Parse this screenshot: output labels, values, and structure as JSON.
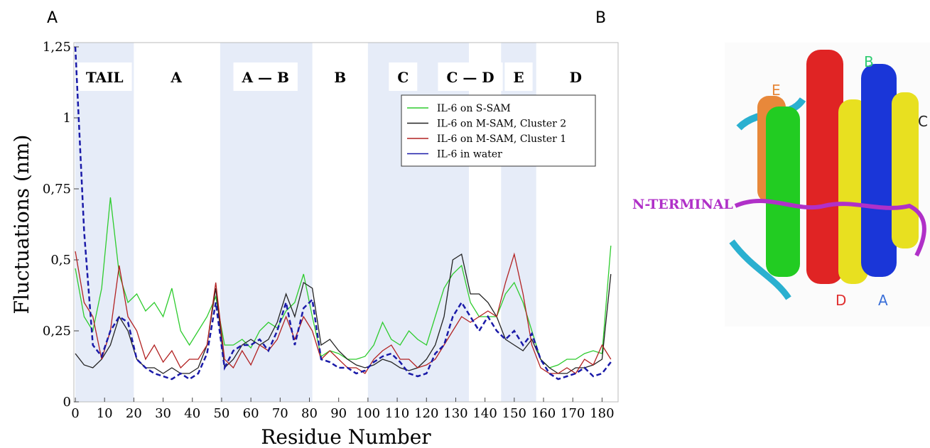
{
  "panels": {
    "left": "A",
    "right": "B"
  },
  "chart_data": {
    "type": "line",
    "xlabel": "Residue Number",
    "ylabel": "Fluctuations (nm)",
    "xlim": [
      0,
      185
    ],
    "ylim": [
      0,
      1.25
    ],
    "xticks": [
      0,
      10,
      20,
      30,
      40,
      50,
      60,
      70,
      80,
      90,
      100,
      110,
      120,
      130,
      140,
      150,
      160,
      170,
      180
    ],
    "yticks": [
      {
        "value": 0,
        "label": "0"
      },
      {
        "value": 0.25,
        "label": "0,25"
      },
      {
        "value": 0.5,
        "label": "0,5"
      },
      {
        "value": 0.75,
        "label": "0,75"
      },
      {
        "value": 1,
        "label": "1"
      },
      {
        "value": 1.25,
        "label": "1,25"
      }
    ],
    "legend": "upper right",
    "shaded_bands": [
      [
        0,
        20
      ],
      [
        49.5,
        81
      ],
      [
        100,
        134.5
      ],
      [
        145.5,
        157.5
      ]
    ],
    "band_color": "#e6ecf8",
    "segments": [
      {
        "label": "TAIL",
        "start": 0,
        "end": 20
      },
      {
        "label": "A",
        "start": 20,
        "end": 49
      },
      {
        "label": "A — B",
        "start": 49,
        "end": 81
      },
      {
        "label": "B",
        "start": 81,
        "end": 100
      },
      {
        "label": "C",
        "start": 100,
        "end": 124
      },
      {
        "label": "C — D",
        "start": 124,
        "end": 146
      },
      {
        "label": "E",
        "start": 146,
        "end": 157
      },
      {
        "label": "D",
        "start": 157,
        "end": 185
      }
    ],
    "x": [
      0,
      3,
      6,
      9,
      12,
      15,
      18,
      21,
      24,
      27,
      30,
      33,
      36,
      39,
      42,
      45,
      48,
      51,
      54,
      57,
      60,
      63,
      66,
      69,
      72,
      75,
      78,
      81,
      84,
      87,
      90,
      93,
      96,
      99,
      102,
      105,
      108,
      111,
      114,
      117,
      120,
      123,
      126,
      129,
      132,
      135,
      138,
      141,
      144,
      147,
      150,
      153,
      156,
      159,
      162,
      165,
      168,
      171,
      174,
      177,
      180,
      183
    ],
    "series": [
      {
        "name": "IL-6 on S-SAM",
        "color": "#2ecc2e",
        "dashed": false,
        "values": [
          0.47,
          0.3,
          0.25,
          0.4,
          0.72,
          0.45,
          0.35,
          0.38,
          0.32,
          0.35,
          0.3,
          0.4,
          0.25,
          0.2,
          0.25,
          0.3,
          0.37,
          0.2,
          0.2,
          0.22,
          0.19,
          0.25,
          0.28,
          0.26,
          0.32,
          0.35,
          0.45,
          0.3,
          0.16,
          0.18,
          0.17,
          0.15,
          0.15,
          0.16,
          0.2,
          0.28,
          0.22,
          0.2,
          0.25,
          0.22,
          0.2,
          0.3,
          0.4,
          0.45,
          0.48,
          0.35,
          0.3,
          0.3,
          0.3,
          0.38,
          0.42,
          0.35,
          0.25,
          0.15,
          0.12,
          0.13,
          0.15,
          0.15,
          0.17,
          0.18,
          0.17,
          0.55
        ]
      },
      {
        "name": "IL-6 on M-SAM, Cluster 2",
        "color": "#222222",
        "dashed": false,
        "values": [
          0.17,
          0.13,
          0.12,
          0.15,
          0.2,
          0.3,
          0.25,
          0.15,
          0.12,
          0.12,
          0.1,
          0.12,
          0.1,
          0.1,
          0.12,
          0.2,
          0.4,
          0.12,
          0.15,
          0.2,
          0.22,
          0.2,
          0.22,
          0.28,
          0.38,
          0.3,
          0.42,
          0.4,
          0.2,
          0.22,
          0.18,
          0.15,
          0.13,
          0.12,
          0.13,
          0.15,
          0.14,
          0.12,
          0.11,
          0.12,
          0.15,
          0.2,
          0.3,
          0.5,
          0.52,
          0.38,
          0.38,
          0.35,
          0.3,
          0.22,
          0.2,
          0.18,
          0.22,
          0.15,
          0.12,
          0.1,
          0.1,
          0.12,
          0.12,
          0.13,
          0.15,
          0.45
        ]
      },
      {
        "name": "IL-6 on M-SAM, Cluster 1",
        "color": "#b22222",
        "dashed": false,
        "values": [
          0.53,
          0.35,
          0.3,
          0.15,
          0.25,
          0.48,
          0.3,
          0.25,
          0.15,
          0.2,
          0.14,
          0.18,
          0.12,
          0.15,
          0.15,
          0.2,
          0.42,
          0.15,
          0.12,
          0.18,
          0.13,
          0.2,
          0.18,
          0.22,
          0.3,
          0.22,
          0.3,
          0.25,
          0.15,
          0.18,
          0.15,
          0.12,
          0.12,
          0.1,
          0.15,
          0.18,
          0.2,
          0.15,
          0.15,
          0.12,
          0.13,
          0.15,
          0.2,
          0.25,
          0.3,
          0.28,
          0.3,
          0.32,
          0.3,
          0.42,
          0.52,
          0.38,
          0.2,
          0.12,
          0.1,
          0.1,
          0.12,
          0.1,
          0.15,
          0.13,
          0.2,
          0.15
        ]
      },
      {
        "name": "IL-6 in water",
        "color": "#1a1aa8",
        "dashed": true,
        "values": [
          1.25,
          0.6,
          0.2,
          0.16,
          0.25,
          0.3,
          0.28,
          0.15,
          0.12,
          0.1,
          0.09,
          0.08,
          0.1,
          0.08,
          0.1,
          0.17,
          0.35,
          0.12,
          0.18,
          0.2,
          0.2,
          0.22,
          0.18,
          0.25,
          0.35,
          0.2,
          0.33,
          0.36,
          0.15,
          0.14,
          0.12,
          0.12,
          0.1,
          0.11,
          0.14,
          0.16,
          0.17,
          0.14,
          0.1,
          0.09,
          0.1,
          0.17,
          0.2,
          0.3,
          0.35,
          0.3,
          0.25,
          0.3,
          0.25,
          0.22,
          0.25,
          0.2,
          0.24,
          0.15,
          0.1,
          0.08,
          0.09,
          0.1,
          0.12,
          0.09,
          0.1,
          0.14
        ]
      }
    ]
  },
  "structure": {
    "helix_labels": [
      {
        "text": "E",
        "color": "#e8883a"
      },
      {
        "text": "B",
        "color": "#2ecc71"
      },
      {
        "text": "C",
        "color": "#222222"
      },
      {
        "text": "N-TERMINAL",
        "color": "#b030c8"
      },
      {
        "text": "D",
        "color": "#e03030"
      },
      {
        "text": "A",
        "color": "#3a6fd8"
      }
    ]
  }
}
